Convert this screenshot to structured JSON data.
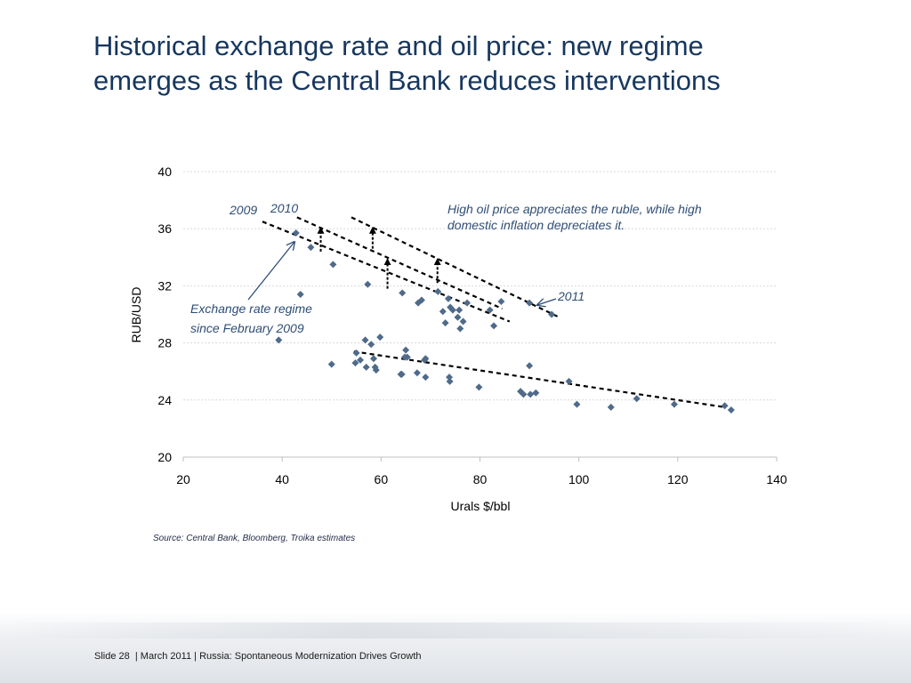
{
  "slide": {
    "title_line1": "Historical exchange rate and oil price: new regime",
    "title_line2": "emerges as the Central Bank reduces interventions",
    "source": "Source: Central Bank, Bloomberg, Troika estimates",
    "footer": {
      "slide_number": "Slide 28",
      "date": "March 2011",
      "title": "Russia: Spontaneous Modernization Drives Growth"
    }
  },
  "colors": {
    "title": "#17375e",
    "marker": "#4f6a8a",
    "annotation": "#2e4d75",
    "gridline": "#d9d9d9"
  },
  "chart_data": {
    "type": "scatter",
    "xlabel": "Urals $/bbl",
    "ylabel": "RUB/USD",
    "xlim": [
      20,
      140
    ],
    "ylim": [
      20,
      40
    ],
    "xticks": [
      20,
      40,
      60,
      80,
      100,
      120,
      140
    ],
    "yticks": [
      20,
      24,
      28,
      32,
      36,
      40
    ],
    "grid": "horizontal dotted",
    "points": [
      [
        42.8,
        35.7
      ],
      [
        45.8,
        34.7
      ],
      [
        50.3,
        33.5
      ],
      [
        43.7,
        31.4
      ],
      [
        39.3,
        28.2
      ],
      [
        57.3,
        32.1
      ],
      [
        64.3,
        31.5
      ],
      [
        67.5,
        30.8
      ],
      [
        68.2,
        31.0
      ],
      [
        71.5,
        31.6
      ],
      [
        72.5,
        30.2
      ],
      [
        73.0,
        29.4
      ],
      [
        73.6,
        31.1
      ],
      [
        74.0,
        30.5
      ],
      [
        74.5,
        30.3
      ],
      [
        75.5,
        29.8
      ],
      [
        75.8,
        30.3
      ],
      [
        76.0,
        29.0
      ],
      [
        76.6,
        29.5
      ],
      [
        77.4,
        30.8
      ],
      [
        82.0,
        30.3
      ],
      [
        82.8,
        29.2
      ],
      [
        84.3,
        30.9
      ],
      [
        90.0,
        30.8
      ],
      [
        94.5,
        30.0
      ],
      [
        50.0,
        26.5
      ],
      [
        54.8,
        26.6
      ],
      [
        55.0,
        27.3
      ],
      [
        55.8,
        26.8
      ],
      [
        56.8,
        28.2
      ],
      [
        57.0,
        26.3
      ],
      [
        58.0,
        27.9
      ],
      [
        58.5,
        26.9
      ],
      [
        58.8,
        26.3
      ],
      [
        59.0,
        26.1
      ],
      [
        59.8,
        28.4
      ],
      [
        64.0,
        25.8
      ],
      [
        64.2,
        25.8
      ],
      [
        64.8,
        27.0
      ],
      [
        65.0,
        27.5
      ],
      [
        65.3,
        27.0
      ],
      [
        67.3,
        25.9
      ],
      [
        68.8,
        26.8
      ],
      [
        69.0,
        26.9
      ],
      [
        69.0,
        25.6
      ],
      [
        73.8,
        25.6
      ],
      [
        73.9,
        25.3
      ],
      [
        79.8,
        24.9
      ],
      [
        88.2,
        24.6
      ],
      [
        88.8,
        24.4
      ],
      [
        90.0,
        26.4
      ],
      [
        90.2,
        24.4
      ],
      [
        91.3,
        24.5
      ],
      [
        98.0,
        25.3
      ],
      [
        99.6,
        23.7
      ],
      [
        106.5,
        23.5
      ],
      [
        111.7,
        24.1
      ],
      [
        119.3,
        23.7
      ],
      [
        129.5,
        23.6
      ],
      [
        130.8,
        23.3
      ]
    ],
    "trendlines": [
      {
        "name": "2009",
        "from": [
          36.0,
          36.5
        ],
        "to": [
          86.0,
          29.5
        ]
      },
      {
        "name": "2010",
        "from": [
          43.0,
          36.8
        ],
        "to": [
          84.5,
          30.4
        ]
      },
      {
        "name": "2011",
        "from": [
          54.0,
          36.8
        ],
        "to": [
          96.0,
          29.8
        ]
      },
      {
        "name": "",
        "from": [
          54.5,
          27.4
        ],
        "to": [
          129.5,
          23.5
        ]
      }
    ],
    "arrows": [
      {
        "from": [
          47.8,
          34.4
        ],
        "to": [
          47.8,
          35.9
        ]
      },
      {
        "from": [
          58.3,
          34.6
        ],
        "to": [
          58.3,
          35.9
        ]
      },
      {
        "from": [
          61.3,
          31.8
        ],
        "to": [
          61.3,
          33.7
        ]
      },
      {
        "from": [
          71.4,
          32.2
        ],
        "to": [
          71.4,
          33.7
        ]
      }
    ],
    "annotations": {
      "label_2009": "2009",
      "label_2010": "2010",
      "label_2011": "2011",
      "high_oil_line1": "High oil price appreciates the ruble, while high",
      "high_oil_line2": "domestic inflation depreciates it.",
      "regime_line1": "Exchange rate regime",
      "regime_line2": "since February 2009"
    }
  }
}
